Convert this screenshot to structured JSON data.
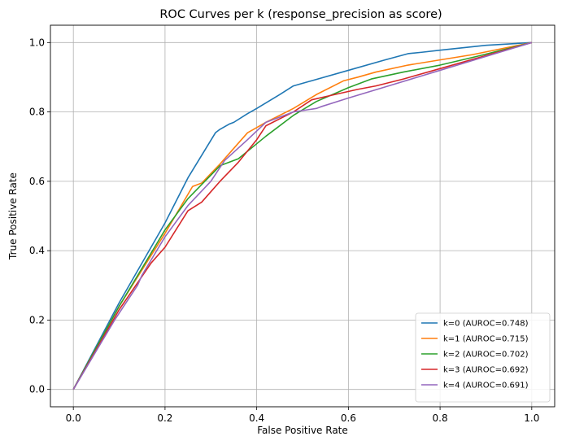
{
  "chart_data": {
    "type": "line",
    "title": "ROC Curves per k (response_precision as score)",
    "xlabel": "False Positive Rate",
    "ylabel": "True Positive Rate",
    "xlim": [
      -0.05,
      1.05
    ],
    "ylim": [
      -0.05,
      1.05
    ],
    "xticks": [
      0.0,
      0.2,
      0.4,
      0.6,
      0.8,
      1.0
    ],
    "yticks": [
      0.0,
      0.2,
      0.4,
      0.6,
      0.8,
      1.0
    ],
    "xtick_labels": [
      "0.0",
      "0.2",
      "0.4",
      "0.6",
      "0.8",
      "1.0"
    ],
    "ytick_labels": [
      "0.0",
      "0.2",
      "0.4",
      "0.6",
      "0.8",
      "1.0"
    ],
    "grid": true,
    "legend_position": "lower-right",
    "series": [
      {
        "name": "k=0 (AUROC=0.748)",
        "color": "#1f77b4",
        "x": [
          0.0,
          0.1,
          0.2,
          0.25,
          0.31,
          0.32,
          0.34,
          0.35,
          0.38,
          0.4,
          0.45,
          0.48,
          0.52,
          0.6,
          0.68,
          0.73,
          0.76,
          0.8,
          0.85,
          0.9,
          1.0
        ],
        "y": [
          0.0,
          0.25,
          0.48,
          0.61,
          0.74,
          0.75,
          0.765,
          0.77,
          0.795,
          0.81,
          0.85,
          0.875,
          0.89,
          0.92,
          0.95,
          0.968,
          0.972,
          0.978,
          0.985,
          0.992,
          1.0
        ]
      },
      {
        "name": "k=1 (AUROC=0.715)",
        "color": "#ff7f0e",
        "x": [
          0.0,
          0.1,
          0.2,
          0.26,
          0.28,
          0.32,
          0.36,
          0.38,
          0.4,
          0.42,
          0.48,
          0.53,
          0.59,
          0.62,
          0.66,
          0.73,
          0.8,
          0.87,
          1.0
        ],
        "y": [
          0.0,
          0.24,
          0.45,
          0.585,
          0.595,
          0.65,
          0.71,
          0.74,
          0.755,
          0.77,
          0.81,
          0.85,
          0.89,
          0.9,
          0.915,
          0.935,
          0.95,
          0.965,
          1.0
        ]
      },
      {
        "name": "k=2 (AUROC=0.702)",
        "color": "#2ca02c",
        "x": [
          0.0,
          0.1,
          0.2,
          0.25,
          0.32,
          0.36,
          0.42,
          0.48,
          0.53,
          0.6,
          0.65,
          0.72,
          0.8,
          0.88,
          1.0
        ],
        "y": [
          0.0,
          0.24,
          0.46,
          0.55,
          0.645,
          0.665,
          0.73,
          0.79,
          0.83,
          0.87,
          0.895,
          0.915,
          0.935,
          0.96,
          1.0
        ]
      },
      {
        "name": "k=3 (AUROC=0.692)",
        "color": "#d62728",
        "x": [
          0.0,
          0.1,
          0.17,
          0.2,
          0.25,
          0.28,
          0.32,
          0.36,
          0.4,
          0.42,
          0.48,
          0.52,
          0.57,
          0.62,
          0.66,
          0.72,
          0.8,
          0.88,
          1.0
        ],
        "y": [
          0.0,
          0.23,
          0.365,
          0.41,
          0.515,
          0.54,
          0.6,
          0.655,
          0.72,
          0.76,
          0.8,
          0.835,
          0.85,
          0.865,
          0.875,
          0.895,
          0.925,
          0.955,
          1.0
        ]
      },
      {
        "name": "k=4 (AUROC=0.691)",
        "color": "#9467bd",
        "x": [
          0.0,
          0.09,
          0.14,
          0.15,
          0.2,
          0.25,
          0.3,
          0.33,
          0.38,
          0.42,
          0.48,
          0.53,
          0.54,
          0.6,
          0.7,
          0.8,
          0.9,
          1.0
        ],
        "y": [
          0.0,
          0.2,
          0.3,
          0.33,
          0.44,
          0.53,
          0.6,
          0.66,
          0.72,
          0.77,
          0.8,
          0.81,
          0.815,
          0.84,
          0.88,
          0.92,
          0.96,
          1.0
        ]
      }
    ]
  }
}
